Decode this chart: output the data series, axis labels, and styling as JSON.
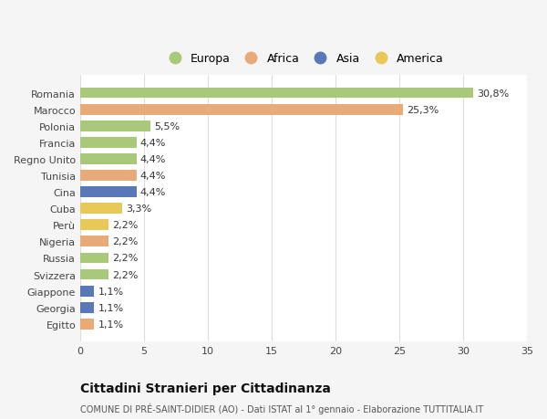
{
  "categories": [
    "Romania",
    "Marocco",
    "Polonia",
    "Francia",
    "Regno Unito",
    "Tunisia",
    "Cina",
    "Cuba",
    "Perù",
    "Nigeria",
    "Russia",
    "Svizzera",
    "Giappone",
    "Georgia",
    "Egitto"
  ],
  "values": [
    30.8,
    25.3,
    5.5,
    4.4,
    4.4,
    4.4,
    4.4,
    3.3,
    2.2,
    2.2,
    2.2,
    2.2,
    1.1,
    1.1,
    1.1
  ],
  "labels": [
    "30,8%",
    "25,3%",
    "5,5%",
    "4,4%",
    "4,4%",
    "4,4%",
    "4,4%",
    "3,3%",
    "2,2%",
    "2,2%",
    "2,2%",
    "2,2%",
    "1,1%",
    "1,1%",
    "1,1%"
  ],
  "continents": [
    "Europa",
    "Africa",
    "Europa",
    "Europa",
    "Europa",
    "Africa",
    "Asia",
    "America",
    "America",
    "Africa",
    "Europa",
    "Europa",
    "Asia",
    "Asia",
    "Africa"
  ],
  "colors": {
    "Europa": "#a8c87a",
    "Africa": "#e8aa78",
    "Asia": "#5878b8",
    "America": "#e8c858"
  },
  "legend_order": [
    "Europa",
    "Africa",
    "Asia",
    "America"
  ],
  "title": "Cittadini Stranieri per Cittadinanza",
  "subtitle": "COMUNE DI PRÉ-SAINT-DIDIER (AO) - Dati ISTAT al 1° gennaio - Elaborazione TUTTITALIA.IT",
  "xlim": [
    0,
    35
  ],
  "xticks": [
    0,
    5,
    10,
    15,
    20,
    25,
    30,
    35
  ],
  "bg_color": "#f5f5f5",
  "plot_bg_color": "#ffffff",
  "label_fontsize": 8,
  "tick_fontsize": 8,
  "legend_fontsize": 9
}
